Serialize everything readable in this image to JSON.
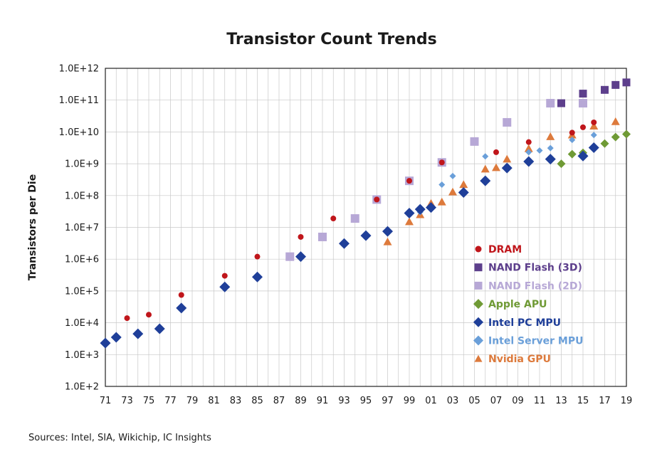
{
  "chart_data": {
    "type": "scatter",
    "title": "Transistor Count Trends",
    "ylabel": "Transistors per Die",
    "xlabel": "",
    "y_scale": "log",
    "ylim": [
      100,
      1000000000000
    ],
    "xlim": [
      1971,
      2019
    ],
    "grid": true,
    "legend_position": "bottom-right",
    "y_ticks": [
      {
        "value": 100,
        "label": "1.0E+2"
      },
      {
        "value": 1000,
        "label": "1.0E+3"
      },
      {
        "value": 10000,
        "label": "1.0E+4"
      },
      {
        "value": 100000,
        "label": "1.0E+5"
      },
      {
        "value": 1000000,
        "label": "1.0E+6"
      },
      {
        "value": 10000000,
        "label": "1.0E+7"
      },
      {
        "value": 100000000,
        "label": "1.0E+8"
      },
      {
        "value": 1000000000,
        "label": "1.0E+9"
      },
      {
        "value": 10000000000,
        "label": "1.0E+10"
      },
      {
        "value": 100000000000,
        "label": "1.0E+11"
      },
      {
        "value": 1000000000000,
        "label": "1.0E+12"
      }
    ],
    "x_ticks": [
      {
        "value": 1971,
        "label": "71"
      },
      {
        "value": 1973,
        "label": "73"
      },
      {
        "value": 1975,
        "label": "75"
      },
      {
        "value": 1977,
        "label": "77"
      },
      {
        "value": 1979,
        "label": "79"
      },
      {
        "value": 1981,
        "label": "81"
      },
      {
        "value": 1983,
        "label": "83"
      },
      {
        "value": 1985,
        "label": "85"
      },
      {
        "value": 1987,
        "label": "87"
      },
      {
        "value": 1989,
        "label": "89"
      },
      {
        "value": 1991,
        "label": "91"
      },
      {
        "value": 1993,
        "label": "93"
      },
      {
        "value": 1995,
        "label": "95"
      },
      {
        "value": 1997,
        "label": "97"
      },
      {
        "value": 1999,
        "label": "99"
      },
      {
        "value": 2001,
        "label": "01"
      },
      {
        "value": 2003,
        "label": "03"
      },
      {
        "value": 2005,
        "label": "05"
      },
      {
        "value": 2007,
        "label": "07"
      },
      {
        "value": 2009,
        "label": "09"
      },
      {
        "value": 2011,
        "label": "11"
      },
      {
        "value": 2013,
        "label": "13"
      },
      {
        "value": 2015,
        "label": "15"
      },
      {
        "value": 2017,
        "label": "17"
      },
      {
        "value": 2019,
        "label": "19"
      }
    ],
    "series": [
      {
        "name": "DRAM",
        "marker": "circle",
        "color": "#c0161b",
        "size": 8,
        "points": [
          [
            1973,
            14000
          ],
          [
            1975,
            18000
          ],
          [
            1978,
            75000
          ],
          [
            1982,
            300000
          ],
          [
            1985,
            1200000
          ],
          [
            1989,
            5000000
          ],
          [
            1992,
            19000000
          ],
          [
            1996,
            75000000
          ],
          [
            1999,
            290000000
          ],
          [
            2002,
            1100000000
          ],
          [
            2007,
            2300000000
          ],
          [
            2010,
            4800000000
          ],
          [
            2014,
            9500000000
          ],
          [
            2015,
            14000000000
          ],
          [
            2016,
            20000000000
          ]
        ]
      },
      {
        "name": "NAND Flash (3D)",
        "marker": "square",
        "color": "#5d3f8c",
        "size": 11,
        "points": [
          [
            2013,
            80000000000
          ],
          [
            2015,
            160000000000
          ],
          [
            2017,
            210000000000
          ],
          [
            2018,
            300000000000
          ],
          [
            2019,
            360000000000
          ]
        ]
      },
      {
        "name": "NAND Flash (2D)",
        "marker": "square",
        "color": "#b7a8d6",
        "size": 12,
        "points": [
          [
            1988,
            1200000
          ],
          [
            1991,
            5000000
          ],
          [
            1994,
            19000000
          ],
          [
            1996,
            75000000
          ],
          [
            1999,
            290000000
          ],
          [
            2002,
            1100000000
          ],
          [
            2005,
            5000000000
          ],
          [
            2008,
            20000000000
          ],
          [
            2012,
            80000000000
          ],
          [
            2015,
            80000000000
          ]
        ]
      },
      {
        "name": "Apple APU",
        "marker": "diamond",
        "color": "#6f9a35",
        "size": 12,
        "points": [
          [
            2013,
            1000000000
          ],
          [
            2014,
            2000000000
          ],
          [
            2015,
            2200000000
          ],
          [
            2016,
            3300000000
          ],
          [
            2017,
            4300000000
          ],
          [
            2018,
            6900000000
          ],
          [
            2019,
            8500000000
          ]
        ]
      },
      {
        "name": "Intel PC MPU",
        "marker": "diamond",
        "color": "#1f3f99",
        "size": 15,
        "points": [
          [
            1971,
            2300
          ],
          [
            1972,
            3500
          ],
          [
            1974,
            4500
          ],
          [
            1976,
            6500
          ],
          [
            1978,
            29000
          ],
          [
            1982,
            134000
          ],
          [
            1985,
            275000
          ],
          [
            1989,
            1200000
          ],
          [
            1993,
            3100000
          ],
          [
            1995,
            5500000
          ],
          [
            1997,
            7500000
          ],
          [
            1999,
            28000000
          ],
          [
            2000,
            37000000
          ],
          [
            2001,
            42000000
          ],
          [
            2004,
            125000000
          ],
          [
            2006,
            291000000
          ],
          [
            2008,
            731000000
          ],
          [
            2010,
            1170000000
          ],
          [
            2012,
            1400000000
          ],
          [
            2015,
            1750000000
          ],
          [
            2016,
            3200000000
          ]
        ]
      },
      {
        "name": "Intel Server MPU",
        "marker": "diamond",
        "color": "#6a9fd9",
        "size": 9,
        "points": [
          [
            2000,
            30000000
          ],
          [
            2002,
            220000000
          ],
          [
            2003,
            410000000
          ],
          [
            2006,
            1700000000
          ],
          [
            2010,
            2300000000
          ],
          [
            2011,
            2600000000
          ],
          [
            2012,
            3100000000
          ],
          [
            2014,
            5600000000
          ],
          [
            2016,
            8000000000
          ]
        ]
      },
      {
        "name": "Nvidia GPU",
        "marker": "triangle",
        "color": "#dd7a3c",
        "size": 12,
        "points": [
          [
            1997,
            3500000
          ],
          [
            1999,
            15000000
          ],
          [
            2000,
            25000000
          ],
          [
            2001,
            57000000
          ],
          [
            2002,
            63000000
          ],
          [
            2003,
            130000000
          ],
          [
            2004,
            222000000
          ],
          [
            2006,
            681000000
          ],
          [
            2007,
            754000000
          ],
          [
            2008,
            1400000000
          ],
          [
            2010,
            3000000000
          ],
          [
            2012,
            7100000000
          ],
          [
            2014,
            8000000000
          ],
          [
            2016,
            15300000000
          ],
          [
            2018,
            21100000000
          ]
        ]
      }
    ]
  },
  "source_note": "Sources:  Intel, SIA, Wikichip, IC Insights"
}
